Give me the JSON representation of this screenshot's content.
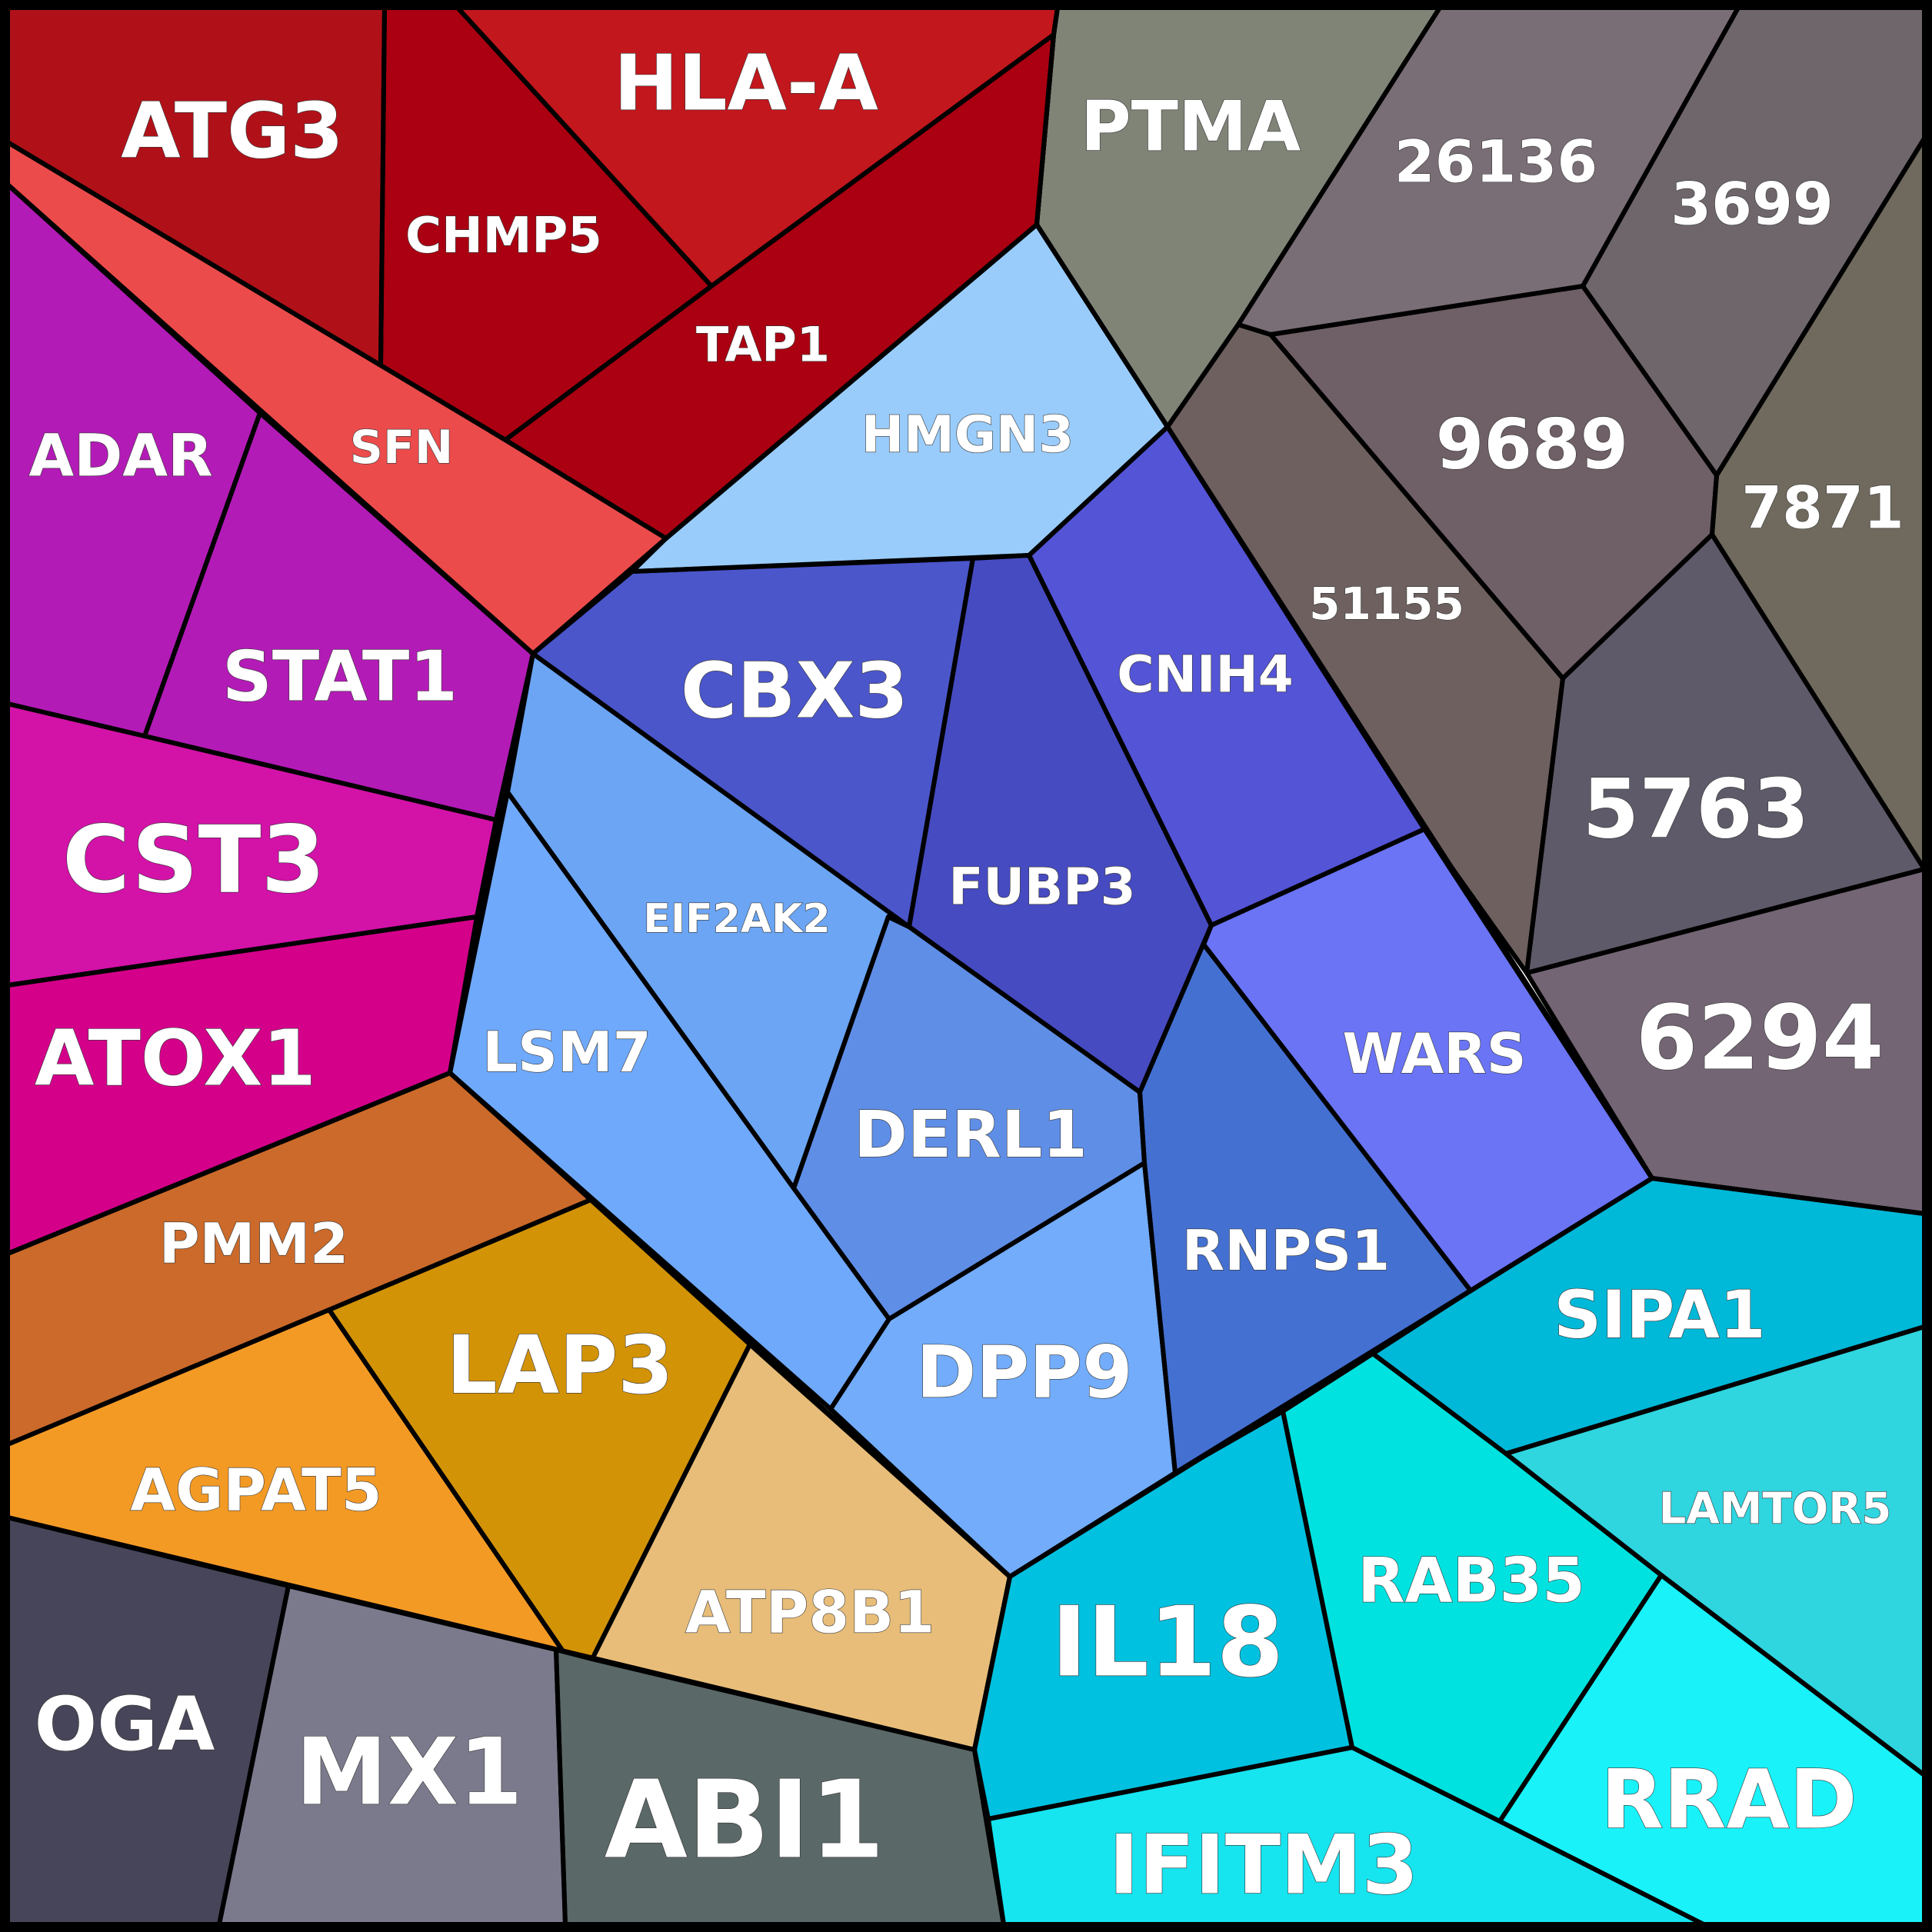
{
  "chart_data": {
    "type": "voronoi-treemap",
    "title": "",
    "groups": [
      {
        "color": "#b01119",
        "cells": [
          {
            "label": "ATG3",
            "color": "#b01119"
          },
          {
            "label": "HLA-A",
            "color": "#c2171d"
          },
          {
            "label": "CHMP5",
            "color": "#aa0011"
          },
          {
            "label": "TAP1",
            "color": "#aa0011"
          },
          {
            "label": "SFN",
            "color": "#ec4b4b"
          }
        ]
      },
      {
        "color": "#b31bb6",
        "cells": [
          {
            "label": "ADAR",
            "color": "#b31bb6"
          },
          {
            "label": "STAT1",
            "color": "#b31bb6"
          },
          {
            "label": "CST3",
            "color": "#d312a8"
          },
          {
            "label": "ATOX1",
            "color": "#d4008a"
          }
        ]
      },
      {
        "color": "#7f8477",
        "cells": [
          {
            "label": "PTMA",
            "color": "#7f8477"
          },
          {
            "label": "26136",
            "color": "#7a6e76"
          },
          {
            "label": "3699",
            "color": "#6f666c"
          },
          {
            "label": "9689",
            "color": "#6f5f66"
          },
          {
            "label": "7871",
            "color": "#706a5e"
          },
          {
            "label": "51155",
            "color": "#6d605f"
          },
          {
            "label": "5763",
            "color": "#5e5a69"
          },
          {
            "label": "6294",
            "color": "#736574"
          }
        ]
      },
      {
        "color": "#4b56cb",
        "cells": [
          {
            "label": "HMGN3",
            "color": "#99ccfb"
          },
          {
            "label": "CBX3",
            "color": "#4b56cb"
          },
          {
            "label": "FUBP3",
            "color": "#464bc1"
          },
          {
            "label": "CNIH4",
            "color": "#5454d6"
          },
          {
            "label": "EIF2AK2",
            "color": "#6ba5f4"
          },
          {
            "label": "LSM7",
            "color": "#6fa9fb"
          },
          {
            "label": "DERL1",
            "color": "#5f8ee6"
          },
          {
            "label": "DPP9",
            "color": "#72acfa"
          },
          {
            "label": "RNPS1",
            "color": "#4470d1"
          },
          {
            "label": "WARS",
            "color": "#6a74f5"
          }
        ]
      },
      {
        "color": "#cb6a2a",
        "cells": [
          {
            "label": "PMM2",
            "color": "#cb6a2a"
          },
          {
            "label": "LAP3",
            "color": "#d39307"
          },
          {
            "label": "AGPAT5",
            "color": "#f39a25"
          },
          {
            "label": "ATP8B1",
            "color": "#e8bd79"
          }
        ]
      },
      {
        "color": "#5a6867",
        "cells": [
          {
            "label": "OGA",
            "color": "#474559"
          },
          {
            "label": "MX1",
            "color": "#7b7a8d"
          },
          {
            "label": "ABI1",
            "color": "#5a6867"
          }
        ]
      },
      {
        "color": "#00b8d8",
        "cells": [
          {
            "label": "SIPA1",
            "color": "#00b8d8"
          },
          {
            "label": "LAMTOR5",
            "color": "#2fd5df"
          },
          {
            "label": "IL18",
            "color": "#00c1df"
          },
          {
            "label": "RAB35",
            "color": "#00e2e0"
          },
          {
            "label": "RRAD",
            "color": "#19f2f8"
          },
          {
            "label": "IFITM3",
            "color": "#16e4ef"
          }
        ]
      }
    ]
  }
}
